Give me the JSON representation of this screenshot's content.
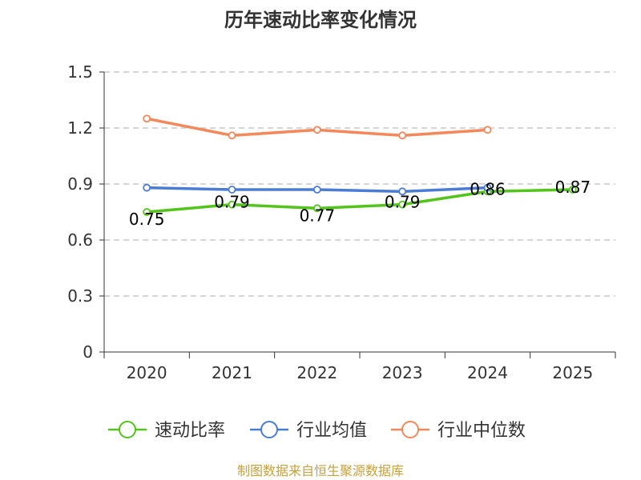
{
  "chart_data": {
    "type": "line",
    "title": "历年速动比率变化情况",
    "categories": [
      "2020",
      "2021",
      "2022",
      "2023",
      "2024",
      "2025"
    ],
    "ylim": [
      0,
      1.5
    ],
    "yticks": [
      "0",
      "0.3",
      "0.6",
      "0.9",
      "1.2",
      "1.5"
    ],
    "grid": true,
    "legend_position": "bottom",
    "series": [
      {
        "name": "速动比率",
        "color": "#52c41a",
        "values": [
          0.75,
          0.79,
          0.77,
          0.79,
          0.86,
          0.87
        ],
        "labels": [
          "0.75",
          "0.79",
          "0.77",
          "0.79",
          "0.86",
          "0.87"
        ]
      },
      {
        "name": "行业均值",
        "color": "#4a7bd6",
        "values": [
          0.88,
          0.87,
          0.87,
          0.86,
          0.88,
          null
        ]
      },
      {
        "name": "行业中位数",
        "color": "#f5875a",
        "values": [
          1.25,
          1.16,
          1.19,
          1.16,
          1.19,
          null
        ]
      }
    ],
    "source": "制图数据来自恒生聚源数据库"
  }
}
